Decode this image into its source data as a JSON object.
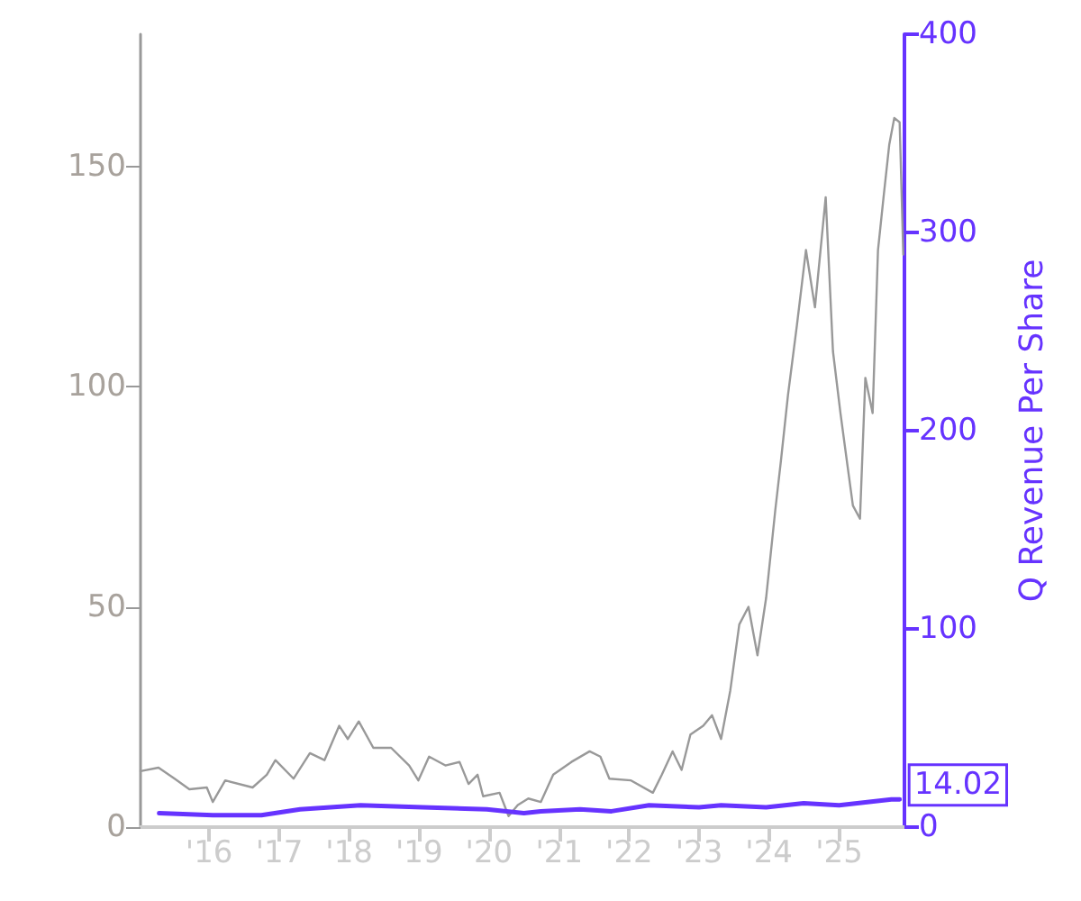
{
  "chart_data": {
    "type": "line",
    "y2label": "Q Revenue Per Share",
    "xlim": [
      "2015-01-08",
      "2025-12-08"
    ],
    "xticks": [
      {
        "value": "2016-01-01",
        "label": "'16"
      },
      {
        "value": "2017-01-01",
        "label": "'17"
      },
      {
        "value": "2018-01-01",
        "label": "'18"
      },
      {
        "value": "2019-01-01",
        "label": "'19"
      },
      {
        "value": "2020-01-01",
        "label": "'20"
      },
      {
        "value": "2021-01-01",
        "label": "'21"
      },
      {
        "value": "2022-01-01",
        "label": "'22"
      },
      {
        "value": "2023-01-01",
        "label": "'23"
      },
      {
        "value": "2024-01-01",
        "label": "'24"
      },
      {
        "value": "2025-01-01",
        "label": "'25"
      }
    ],
    "ylim": [
      0,
      180
    ],
    "yticks": [
      0,
      50,
      100,
      150
    ],
    "y2lim": [
      0,
      400
    ],
    "y2ticks": [
      0,
      100,
      200,
      300,
      400
    ],
    "grid": false,
    "marker": "none",
    "line_style": "solid",
    "series": [
      {
        "color": "#999999",
        "x": [
          "2015-01-08",
          "2015-04-12",
          "2015-07-05",
          "2015-09-20",
          "2015-12-20",
          "2016-01-20",
          "2016-03-25",
          "2016-08-15",
          "2016-10-28",
          "2016-12-12",
          "2017-03-17",
          "2017-06-10",
          "2017-08-25",
          "2017-11-10",
          "2017-12-25",
          "2018-02-20",
          "2018-05-07",
          "2018-08-08",
          "2018-11-10",
          "2018-12-28",
          "2019-02-22",
          "2019-05-18",
          "2019-07-31",
          "2019-09-16",
          "2019-11-02",
          "2019-12-01",
          "2020-02-25",
          "2020-04-12",
          "2020-05-30",
          "2020-07-24",
          "2020-09-27",
          "2020-12-01",
          "2021-03-06",
          "2021-06-09",
          "2021-08-04",
          "2021-09-20",
          "2022-01-11",
          "2022-05-05",
          "2022-06-21",
          "2022-08-16",
          "2022-10-02",
          "2022-11-17",
          "2023-01-23",
          "2023-03-10",
          "2023-04-26",
          "2023-06-13",
          "2023-07-30",
          "2023-09-16",
          "2023-11-02",
          "2023-12-17",
          "2024-02-03",
          "2024-03-03",
          "2024-04-09",
          "2024-05-26",
          "2024-07-12",
          "2024-08-28",
          "2024-10-23",
          "2024-11-30",
          "2025-01-08",
          "2025-02-14",
          "2025-03-14",
          "2025-04-20",
          "2025-05-18",
          "2025-06-25",
          "2025-07-23",
          "2025-08-21",
          "2025-09-20",
          "2025-10-16",
          "2025-11-13",
          "2025-12-02"
        ],
        "values": [
          12.7,
          13.5,
          11,
          8.6,
          9,
          5.7,
          10.6,
          9,
          11.9,
          15.2,
          11,
          16.8,
          15.2,
          23,
          20,
          24,
          18,
          18,
          14,
          10.6,
          16,
          14,
          14.8,
          9.8,
          11.9,
          7,
          7.8,
          2.5,
          5,
          6.5,
          5.7,
          11.9,
          14.8,
          17.2,
          16,
          11,
          10.6,
          7.8,
          11.9,
          17.2,
          13,
          21,
          23,
          25.4,
          20,
          31,
          46,
          50,
          39,
          52,
          72,
          83,
          98,
          114,
          131,
          118,
          143,
          108,
          94,
          82,
          73,
          70,
          102,
          94,
          131,
          143,
          155,
          161,
          160,
          130
        ]
      },
      {
        "color": "#6633ff",
        "axis": "y2",
        "x": [
          "2015-04-15",
          "2016-01-20",
          "2016-09-30",
          "2017-04-20",
          "2018-03-01",
          "2019-01-20",
          "2019-12-20",
          "2020-07-01",
          "2020-09-27",
          "2021-04-20",
          "2021-10-01",
          "2022-04-15",
          "2023-01-01",
          "2023-04-26",
          "2023-12-17",
          "2024-06-30",
          "2025-01-01",
          "2025-10-01",
          "2025-11-13"
        ],
        "values": [
          7,
          6,
          6,
          9,
          11,
          10,
          9,
          7,
          8,
          9,
          8,
          11,
          10,
          11,
          10,
          12,
          11,
          14,
          14.02
        ],
        "value_labels": [
          null,
          null,
          null,
          null,
          null,
          null,
          null,
          null,
          null,
          null,
          null,
          null,
          null,
          null,
          null,
          null,
          null,
          null,
          "14.02"
        ]
      }
    ]
  }
}
